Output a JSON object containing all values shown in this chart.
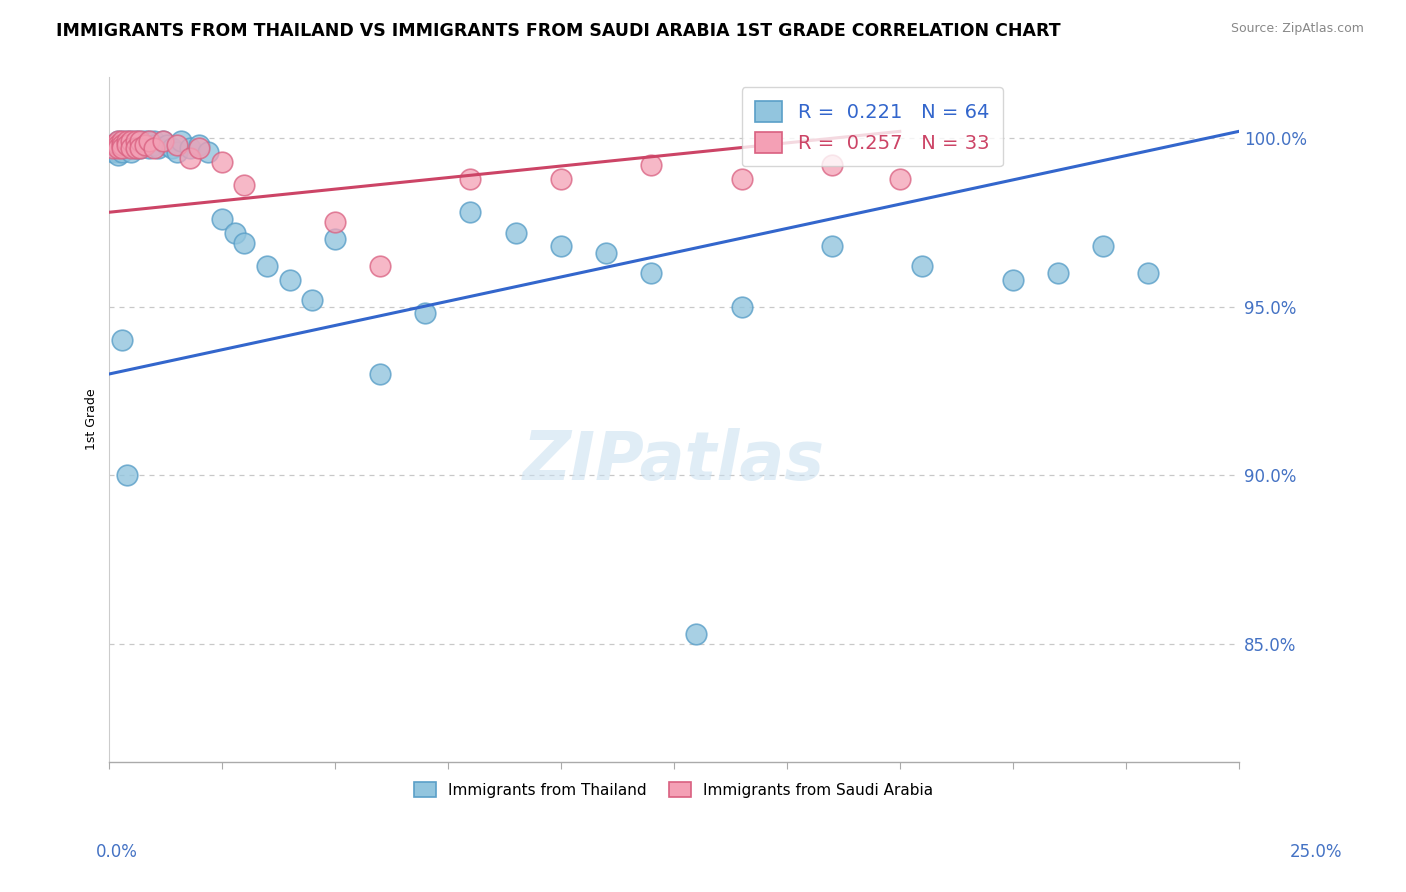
{
  "title": "IMMIGRANTS FROM THAILAND VS IMMIGRANTS FROM SAUDI ARABIA 1ST GRADE CORRELATION CHART",
  "source": "Source: ZipAtlas.com",
  "ylabel": "1st Grade",
  "ytick_labels": [
    "85.0%",
    "90.0%",
    "95.0%",
    "100.0%"
  ],
  "ytick_values": [
    0.85,
    0.9,
    0.95,
    1.0
  ],
  "xlim": [
    0.0,
    0.25
  ],
  "ylim": [
    0.815,
    1.018
  ],
  "legend_blue_r": "R = 0.221",
  "legend_blue_n": "N = 64",
  "legend_pink_r": "R = 0.257",
  "legend_pink_n": "N = 33",
  "legend_blue_label": "Immigrants from Thailand",
  "legend_pink_label": "Immigrants from Saudi Arabia",
  "blue_color": "#92c5de",
  "blue_edge": "#5a9fc8",
  "pink_color": "#f4a0b5",
  "pink_edge": "#d96080",
  "trendline_blue": "#3366cc",
  "trendline_pink": "#cc4466",
  "blue_trend_x": [
    0.0,
    0.25
  ],
  "blue_trend_y": [
    0.93,
    1.002
  ],
  "pink_trend_x": [
    0.0,
    0.175
  ],
  "pink_trend_y": [
    0.978,
    1.002
  ],
  "blue_x": [
    0.001,
    0.001,
    0.001,
    0.002,
    0.002,
    0.002,
    0.002,
    0.002,
    0.003,
    0.003,
    0.003,
    0.003,
    0.004,
    0.004,
    0.004,
    0.005,
    0.005,
    0.005,
    0.005,
    0.006,
    0.006,
    0.006,
    0.007,
    0.007,
    0.007,
    0.008,
    0.008,
    0.009,
    0.009,
    0.01,
    0.01,
    0.011,
    0.012,
    0.013,
    0.014,
    0.015,
    0.016,
    0.018,
    0.02,
    0.022,
    0.025,
    0.028,
    0.03,
    0.035,
    0.04,
    0.045,
    0.05,
    0.06,
    0.07,
    0.08,
    0.09,
    0.1,
    0.12,
    0.14,
    0.16,
    0.18,
    0.2,
    0.21,
    0.22,
    0.23,
    0.003,
    0.004,
    0.11,
    0.13
  ],
  "blue_y": [
    0.998,
    0.997,
    0.996,
    0.999,
    0.998,
    0.997,
    0.996,
    0.995,
    0.999,
    0.998,
    0.997,
    0.996,
    0.999,
    0.998,
    0.997,
    0.999,
    0.998,
    0.997,
    0.996,
    0.999,
    0.998,
    0.997,
    0.999,
    0.998,
    0.997,
    0.999,
    0.998,
    0.999,
    0.997,
    0.999,
    0.998,
    0.997,
    0.999,
    0.998,
    0.997,
    0.996,
    0.999,
    0.997,
    0.998,
    0.996,
    0.976,
    0.972,
    0.969,
    0.962,
    0.958,
    0.952,
    0.97,
    0.93,
    0.948,
    0.978,
    0.972,
    0.968,
    0.96,
    0.95,
    0.968,
    0.962,
    0.958,
    0.96,
    0.968,
    0.96,
    0.94,
    0.9,
    0.966,
    0.853
  ],
  "pink_x": [
    0.001,
    0.001,
    0.002,
    0.002,
    0.002,
    0.003,
    0.003,
    0.003,
    0.004,
    0.004,
    0.005,
    0.005,
    0.006,
    0.006,
    0.007,
    0.007,
    0.008,
    0.009,
    0.01,
    0.012,
    0.015,
    0.018,
    0.02,
    0.025,
    0.03,
    0.05,
    0.06,
    0.08,
    0.1,
    0.12,
    0.14,
    0.16,
    0.175
  ],
  "pink_y": [
    0.998,
    0.997,
    0.999,
    0.998,
    0.997,
    0.999,
    0.998,
    0.997,
    0.999,
    0.998,
    0.999,
    0.997,
    0.999,
    0.997,
    0.999,
    0.997,
    0.998,
    0.999,
    0.997,
    0.999,
    0.998,
    0.994,
    0.997,
    0.993,
    0.986,
    0.975,
    0.962,
    0.988,
    0.988,
    0.992,
    0.988,
    0.992,
    0.988
  ]
}
